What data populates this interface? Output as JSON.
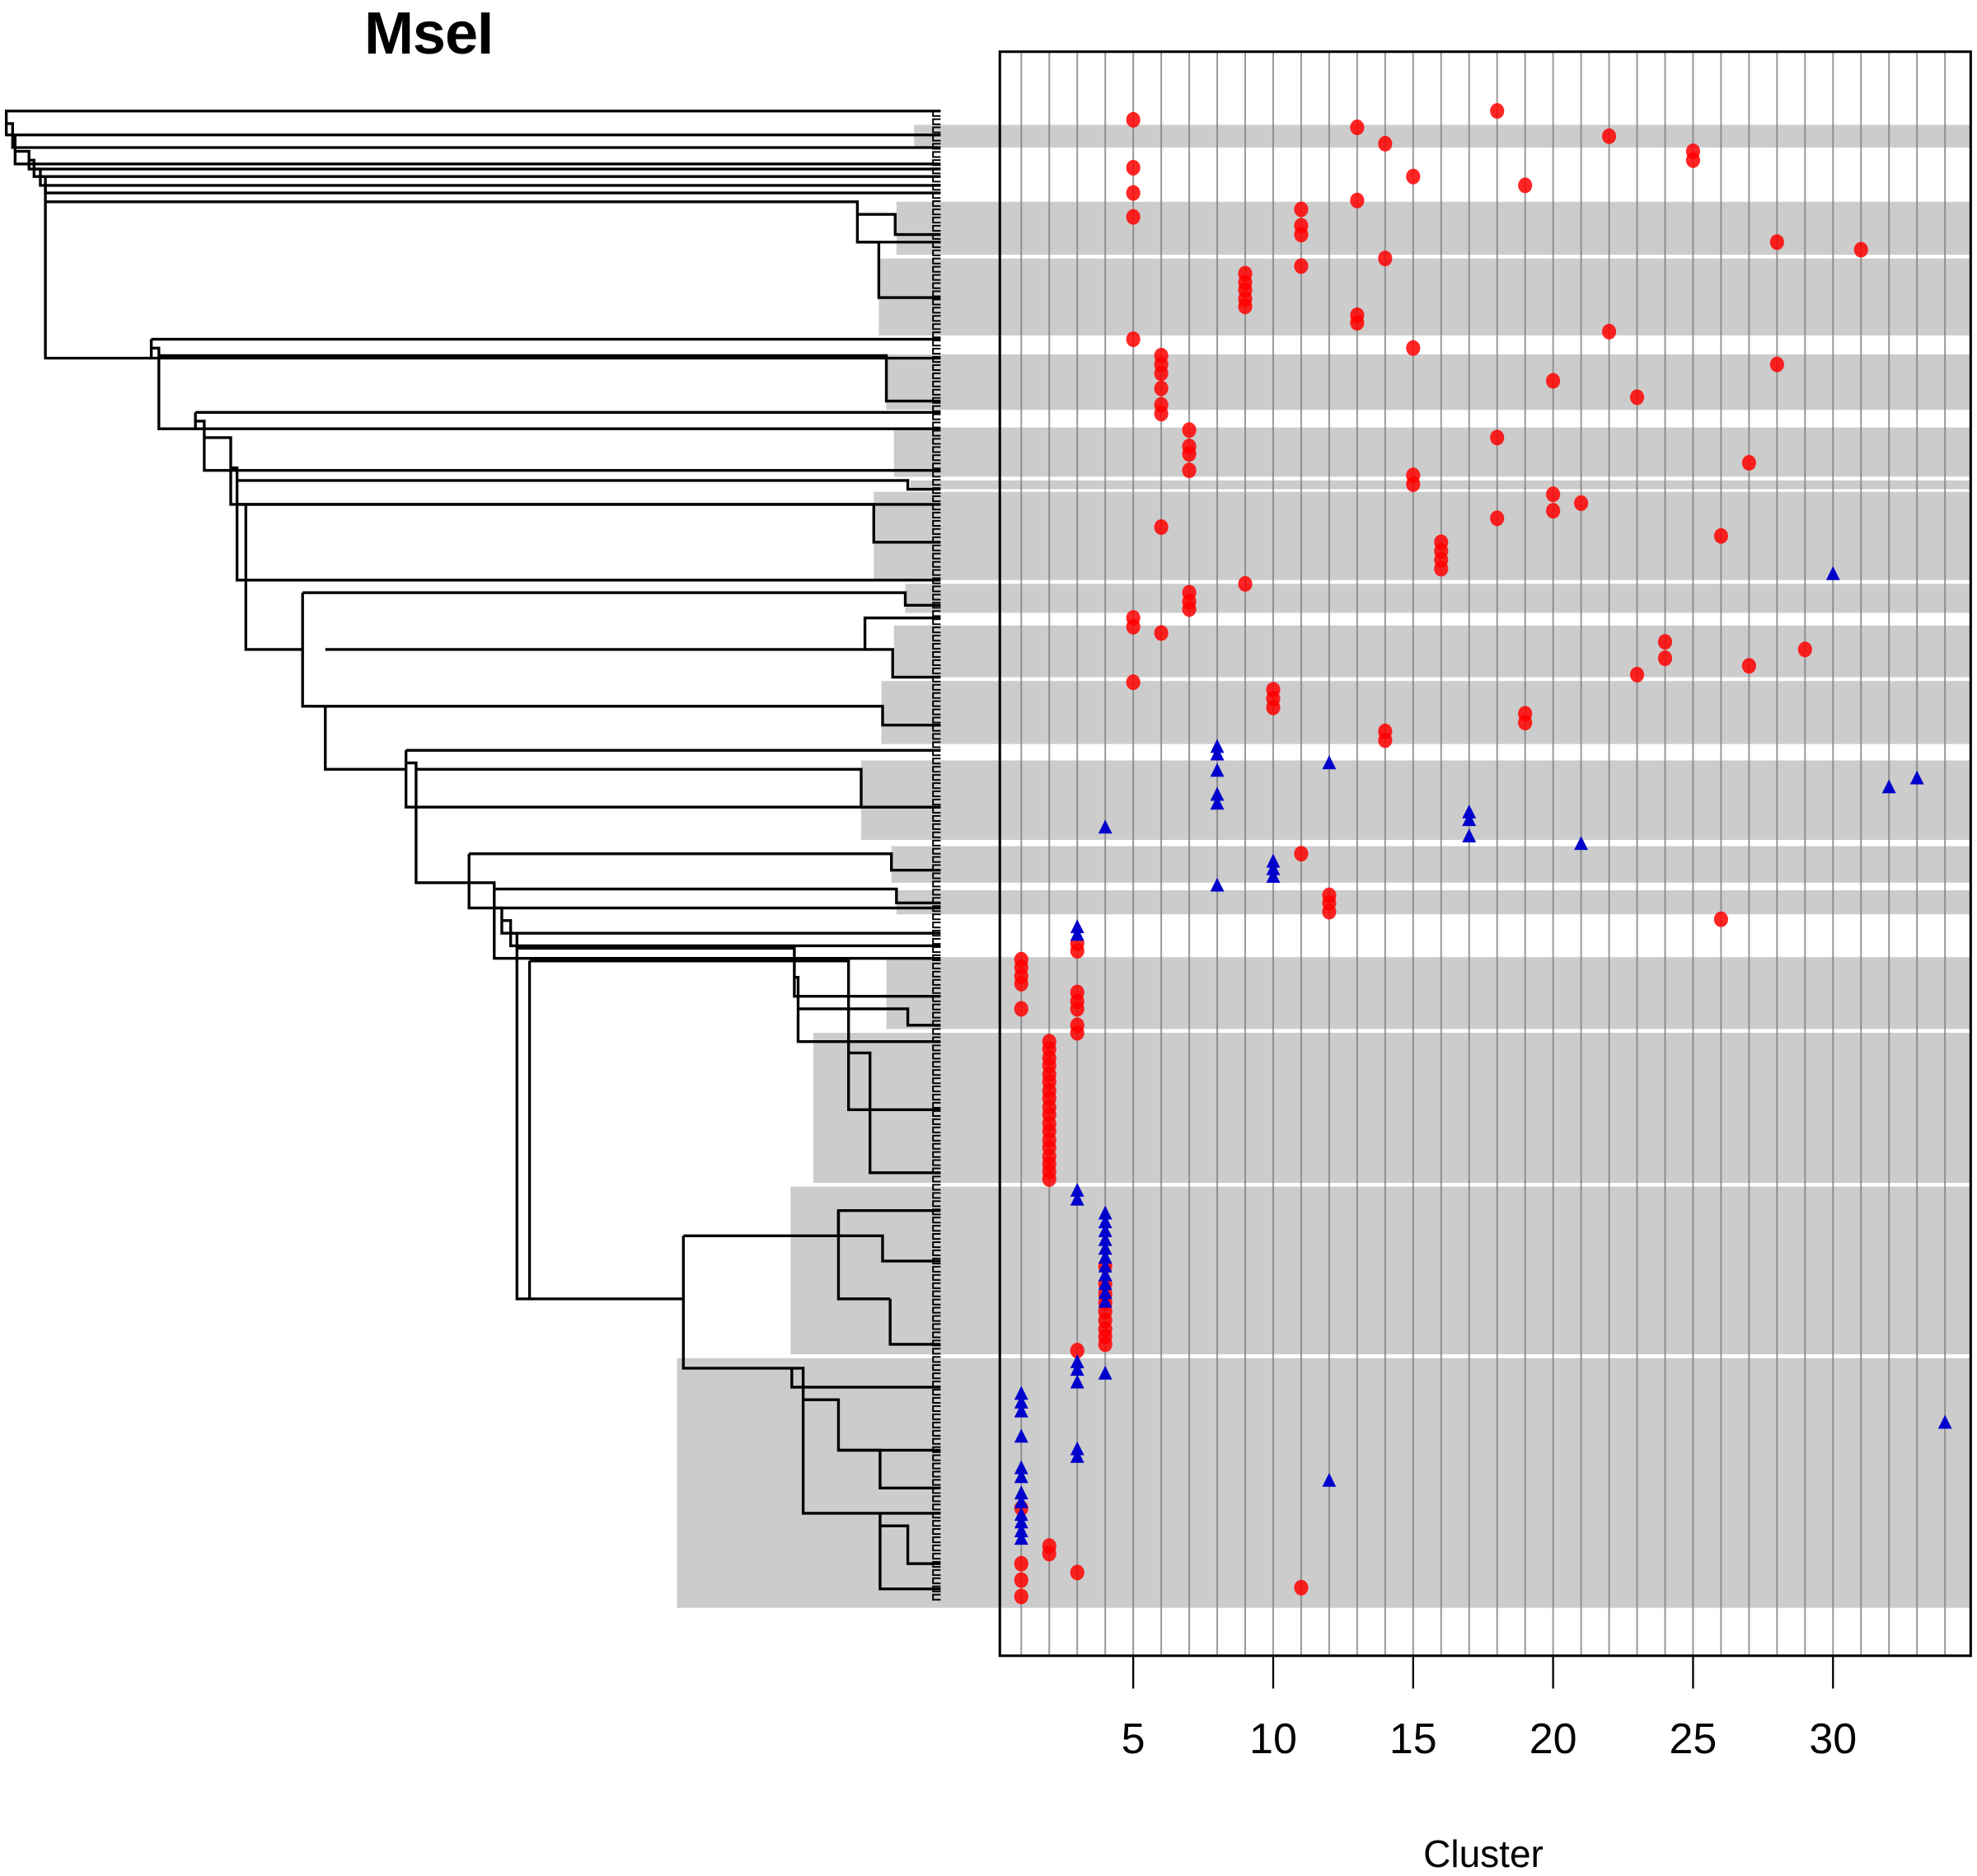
{
  "chart_data": {
    "type": "scatter",
    "title": "MseI",
    "xlabel": "Cluster",
    "ylabel": "",
    "xlim": [
      0.2,
      34.8
    ],
    "xticks": [
      5,
      10,
      15,
      20,
      25,
      30
    ],
    "grid": "vertical line per cluster 1-34",
    "left_panel": "dendrogram of samples (rows) with grey shaded clade bands",
    "series": [
      {
        "name": "red circles",
        "marker": "circle",
        "color": "#ff0000",
        "points": [
          [
            5,
            95
          ],
          [
            5,
            133
          ],
          [
            5,
            153
          ],
          [
            5,
            172
          ],
          [
            5,
            269
          ],
          [
            5,
            490
          ],
          [
            5,
            497
          ],
          [
            5,
            541
          ],
          [
            13,
            101
          ],
          [
            13,
            159
          ],
          [
            13,
            250
          ],
          [
            13,
            256
          ],
          [
            18,
            88
          ],
          [
            18,
            347
          ],
          [
            18,
            411
          ],
          [
            14,
            114
          ],
          [
            14,
            205
          ],
          [
            14,
            580
          ],
          [
            14,
            587
          ],
          [
            22,
            108
          ],
          [
            22,
            263
          ],
          [
            25,
            120
          ],
          [
            25,
            127
          ],
          [
            15,
            140
          ],
          [
            15,
            276
          ],
          [
            15,
            377
          ],
          [
            15,
            384
          ],
          [
            19,
            147
          ],
          [
            19,
            566
          ],
          [
            19,
            573
          ],
          [
            11,
            166
          ],
          [
            11,
            179
          ],
          [
            11,
            186
          ],
          [
            11,
            211
          ],
          [
            11,
            677
          ],
          [
            11,
            1259
          ],
          [
            28,
            192
          ],
          [
            28,
            289
          ],
          [
            31,
            198
          ],
          [
            9,
            217
          ],
          [
            9,
            224
          ],
          [
            9,
            230
          ],
          [
            9,
            237
          ],
          [
            9,
            243
          ],
          [
            9,
            463
          ],
          [
            6,
            282
          ],
          [
            6,
            289
          ],
          [
            6,
            296
          ],
          [
            6,
            308
          ],
          [
            6,
            321
          ],
          [
            6,
            328
          ],
          [
            6,
            418
          ],
          [
            6,
            502
          ],
          [
            20,
            302
          ],
          [
            20,
            392
          ],
          [
            20,
            405
          ],
          [
            23,
            315
          ],
          [
            23,
            535
          ],
          [
            7,
            341
          ],
          [
            7,
            354
          ],
          [
            7,
            360
          ],
          [
            7,
            373
          ],
          [
            7,
            470
          ],
          [
            7,
            477
          ],
          [
            7,
            483
          ],
          [
            27,
            367
          ],
          [
            27,
            528
          ],
          [
            21,
            399
          ],
          [
            26,
            425
          ],
          [
            26,
            729
          ],
          [
            16,
            430
          ],
          [
            16,
            437
          ],
          [
            16,
            444
          ],
          [
            16,
            451
          ],
          [
            24,
            509
          ],
          [
            24,
            522
          ],
          [
            29,
            515
          ],
          [
            10,
            547
          ],
          [
            10,
            554
          ],
          [
            10,
            561
          ],
          [
            12,
            710
          ],
          [
            12,
            716
          ],
          [
            12,
            723
          ],
          [
            1,
            761
          ],
          [
            1,
            767
          ],
          [
            1,
            774
          ],
          [
            1,
            780
          ],
          [
            1,
            800
          ],
          [
            1,
            1196
          ],
          [
            1,
            1240
          ],
          [
            1,
            1253
          ],
          [
            1,
            1266
          ],
          [
            3,
            748
          ],
          [
            3,
            754
          ],
          [
            3,
            787
          ],
          [
            3,
            794
          ],
          [
            3,
            800
          ],
          [
            3,
            813
          ],
          [
            3,
            819
          ],
          [
            3,
            1071
          ],
          [
            3,
            1247
          ],
          [
            2,
            826
          ],
          [
            2,
            832
          ],
          [
            2,
            839
          ],
          [
            2,
            845
          ],
          [
            2,
            852
          ],
          [
            2,
            858
          ],
          [
            2,
            865
          ],
          [
            2,
            871
          ],
          [
            2,
            878
          ],
          [
            2,
            884
          ],
          [
            2,
            891
          ],
          [
            2,
            897
          ],
          [
            2,
            904
          ],
          [
            2,
            910
          ],
          [
            2,
            917
          ],
          [
            2,
            923
          ],
          [
            2,
            929
          ],
          [
            2,
            935
          ],
          [
            2,
            1226
          ],
          [
            2,
            1232
          ],
          [
            4,
            1004
          ],
          [
            4,
            1018
          ],
          [
            4,
            1026
          ],
          [
            4,
            1033
          ],
          [
            4,
            1040
          ],
          [
            4,
            1047
          ],
          [
            4,
            1054
          ],
          [
            4,
            1060
          ],
          [
            4,
            1066
          ]
        ]
      },
      {
        "name": "blue triangles",
        "marker": "triangle",
        "color": "#0000cc",
        "points": [
          [
            30,
            456
          ],
          [
            8,
            593
          ],
          [
            8,
            599
          ],
          [
            8,
            612
          ],
          [
            8,
            631
          ],
          [
            8,
            638
          ],
          [
            8,
            703
          ],
          [
            12,
            606
          ],
          [
            32,
            625
          ],
          [
            33,
            618
          ],
          [
            4,
            657
          ],
          [
            4,
            963
          ],
          [
            4,
            970
          ],
          [
            4,
            977
          ],
          [
            4,
            984
          ],
          [
            4,
            991
          ],
          [
            4,
            998
          ],
          [
            4,
            1005
          ],
          [
            4,
            1012
          ],
          [
            4,
            1019
          ],
          [
            4,
            1026
          ],
          [
            4,
            1033
          ],
          [
            4,
            1090
          ],
          [
            17,
            645
          ],
          [
            17,
            651
          ],
          [
            17,
            664
          ],
          [
            21,
            670
          ],
          [
            10,
            684
          ],
          [
            10,
            690
          ],
          [
            10,
            696
          ],
          [
            3,
            736
          ],
          [
            3,
            742
          ],
          [
            3,
            945
          ],
          [
            3,
            952
          ],
          [
            3,
            1081
          ],
          [
            3,
            1087
          ],
          [
            3,
            1097
          ],
          [
            3,
            1150
          ],
          [
            3,
            1156
          ],
          [
            1,
            1106
          ],
          [
            1,
            1113
          ],
          [
            1,
            1120
          ],
          [
            1,
            1140
          ],
          [
            1,
            1165
          ],
          [
            1,
            1172
          ],
          [
            1,
            1185
          ],
          [
            1,
            1192
          ],
          [
            1,
            1202
          ],
          [
            1,
            1208
          ],
          [
            1,
            1215
          ],
          [
            1,
            1221
          ],
          [
            12,
            1175
          ],
          [
            34,
            1129
          ]
        ]
      }
    ],
    "bands": [
      [
        99,
        117
      ],
      [
        160,
        202
      ],
      [
        205,
        266
      ],
      [
        281,
        325
      ],
      [
        339,
        378
      ],
      [
        381,
        388
      ],
      [
        390,
        460
      ],
      [
        463,
        486
      ],
      [
        496,
        537
      ],
      [
        540,
        590
      ],
      [
        603,
        666
      ],
      [
        671,
        700
      ],
      [
        706,
        725
      ],
      [
        759,
        816
      ],
      [
        819,
        938
      ],
      [
        941,
        1074
      ],
      [
        1077,
        1275
      ]
    ],
    "band_left": [
      725,
      711,
      697,
      703,
      709,
      722,
      693,
      718,
      709,
      699,
      683,
      707,
      711,
      703,
      645,
      627,
      537
    ]
  },
  "labels": {
    "title": "MseI",
    "xlabel": "Cluster",
    "ticks": [
      "5",
      "10",
      "15",
      "20",
      "25",
      "30"
    ]
  },
  "colors": {
    "band": "#cccccc",
    "grid": "#808080",
    "red": "#ff0000",
    "blue": "#0000cc"
  }
}
